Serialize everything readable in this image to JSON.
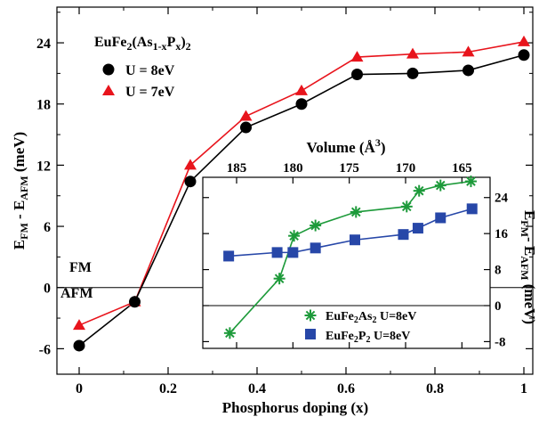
{
  "chart_data": [
    {
      "type": "line",
      "xlabel": "Phosphorus doping (x)",
      "ylabel": {
        "main": "E",
        "sub1": "FM",
        "mid": " - E",
        "sub2": "AFM",
        "tail": " (meV)"
      },
      "xlim": [
        -0.05,
        1.02
      ],
      "ylim": [
        -8.5,
        27.5
      ],
      "xticks": [
        "0",
        "0.2",
        "0.4",
        "0.6",
        "0.8",
        "1"
      ],
      "xtick_values": [
        0,
        0.2,
        0.4,
        0.6,
        0.8,
        1.0
      ],
      "yticks": [
        "-6",
        "0",
        "6",
        "12",
        "18",
        "24"
      ],
      "ytick_values": [
        -6,
        0,
        6,
        12,
        18,
        24
      ],
      "legend_title": {
        "base": "EuFe",
        "s1": "2",
        "mid": "(As",
        "s2": "1-x",
        "p": "P",
        "s3": "x",
        "end": ")",
        "s4": "2"
      },
      "annotations": {
        "fm": "FM",
        "afm": "AFM"
      },
      "x": [
        0,
        0.125,
        0.25,
        0.375,
        0.5,
        0.625,
        0.75,
        0.875,
        1.0
      ],
      "series": [
        {
          "name": "U = 8eV",
          "color": "#000000",
          "marker": "circle",
          "values": [
            -5.7,
            -1.4,
            10.4,
            15.7,
            18.0,
            20.9,
            21.0,
            21.3,
            22.8
          ]
        },
        {
          "name": "U = 7eV",
          "color": "#e8141c",
          "marker": "triangle",
          "values": [
            -3.7,
            -1.4,
            12.0,
            16.8,
            19.3,
            22.6,
            22.9,
            23.1,
            24.1
          ]
        }
      ]
    },
    {
      "type": "line",
      "xlabel": {
        "main": "Volume (Å",
        "sup": "3",
        "end": ")"
      },
      "ylabel": {
        "main": "E",
        "sub1": "FM",
        "mid": "- E",
        "sub2": "AFM",
        "tail": " (meV)"
      },
      "xlim": [
        188,
        162.5
      ],
      "ylim": [
        -9.5,
        28.5
      ],
      "xticks": [
        "185",
        "180",
        "175",
        "170",
        "165"
      ],
      "xtick_values": [
        185,
        180,
        175,
        170,
        165
      ],
      "yticks": [
        "-8",
        "0",
        "8",
        "16",
        "24"
      ],
      "ytick_values": [
        -8,
        0,
        8,
        16,
        24
      ],
      "series": [
        {
          "name": {
            "base": "EuFe",
            "s1": "2",
            "mid": "As",
            "s2": "2",
            "tail": "  U=8eV"
          },
          "color": "#1d9a3a",
          "marker": "asterisk",
          "x": [
            185.6,
            181.2,
            179.9,
            178.0,
            174.4,
            169.9,
            168.8,
            166.9,
            164.2
          ],
          "values": [
            -6.1,
            6.0,
            15.5,
            17.8,
            20.8,
            22.0,
            25.5,
            26.7,
            27.6
          ]
        },
        {
          "name": {
            "base": "EuFe",
            "s1": "2",
            "mid": "P",
            "s2": "2",
            "tail": "  U=8eV"
          },
          "color": "#2747a8",
          "marker": "square",
          "x": [
            185.7,
            181.4,
            180.0,
            178.0,
            174.5,
            170.2,
            168.9,
            166.9,
            164.1
          ],
          "values": [
            11.0,
            11.8,
            11.8,
            12.8,
            14.6,
            15.8,
            17.2,
            19.5,
            21.5
          ]
        }
      ]
    }
  ]
}
